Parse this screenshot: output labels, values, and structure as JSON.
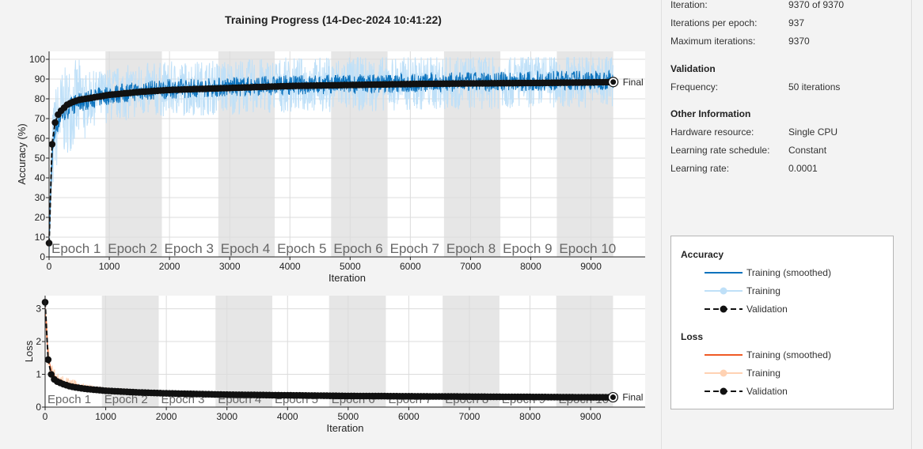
{
  "title": "Training Progress (14-Dec-2024 10:41:22)",
  "colors": {
    "acc_smoothed": "#0b72bd",
    "acc_training": "#bfe0f8",
    "loss_smoothed": "#ef5a25",
    "loss_training": "#ffd2b3",
    "validation": "#111111",
    "epoch_band": "#e6e6e6",
    "grid": "#dcdcdc"
  },
  "info": {
    "rows": [
      {
        "label": "Iteration:",
        "value": "9370 of 9370"
      },
      {
        "label": "Iterations per epoch:",
        "value": "937"
      },
      {
        "label": "Maximum iterations:",
        "value": "9370"
      }
    ],
    "validation_header": "Validation",
    "validation_rows": [
      {
        "label": "Frequency:",
        "value": "50 iterations"
      }
    ],
    "other_header": "Other Information",
    "other_rows": [
      {
        "label": "Hardware resource:",
        "value": "Single CPU"
      },
      {
        "label": "Learning rate schedule:",
        "value": "Constant"
      },
      {
        "label": "Learning rate:",
        "value": "0.0001"
      }
    ]
  },
  "legend": {
    "accuracy_header": "Accuracy",
    "accuracy_items": [
      "Training (smoothed)",
      "Training",
      "Validation"
    ],
    "loss_header": "Loss",
    "loss_items": [
      "Training (smoothed)",
      "Training",
      "Validation"
    ]
  },
  "chart_data": [
    {
      "type": "line",
      "ylabel": "Accuracy (%)",
      "xlabel": "Iteration",
      "xlim": [
        0,
        9900
      ],
      "ylim": [
        0,
        104
      ],
      "x_ticks": [
        0,
        1000,
        2000,
        3000,
        4000,
        5000,
        6000,
        7000,
        8000,
        9000
      ],
      "y_ticks": [
        0,
        10,
        20,
        30,
        40,
        50,
        60,
        70,
        80,
        90,
        100
      ],
      "epochs": [
        "Epoch 1",
        "Epoch 2",
        "Epoch 3",
        "Epoch 4",
        "Epoch 5",
        "Epoch 6",
        "Epoch 7",
        "Epoch 8",
        "Epoch 9",
        "Epoch 10"
      ],
      "iterations_per_epoch": 937,
      "final_label": "Final",
      "validation": {
        "x": [
          0,
          50,
          100,
          150,
          200,
          300,
          400,
          500,
          700,
          1000,
          1500,
          2000,
          2500,
          3000,
          3500,
          4000,
          5000,
          6000,
          7000,
          8000,
          9000,
          9370
        ],
        "y": [
          7,
          57,
          68,
          72,
          74,
          77,
          78.5,
          79.5,
          80.5,
          82,
          83.5,
          84.5,
          85,
          85.5,
          86,
          86.5,
          87,
          87.5,
          87.8,
          88,
          88.3,
          88.5
        ]
      },
      "training_smoothed": {
        "x": [
          0,
          50,
          100,
          200,
          400,
          700,
          1000,
          1500,
          2000,
          3000,
          4000,
          5000,
          6000,
          7000,
          8000,
          9370
        ],
        "y": [
          8,
          50,
          64,
          72,
          77,
          80,
          82,
          84,
          85,
          86,
          87,
          87.5,
          88,
          88.5,
          89,
          89.5
        ]
      }
    },
    {
      "type": "line",
      "ylabel": "Loss",
      "xlabel": "Iteration",
      "xlim": [
        0,
        9900
      ],
      "ylim": [
        0,
        3.4
      ],
      "x_ticks": [
        0,
        1000,
        2000,
        3000,
        4000,
        5000,
        6000,
        7000,
        8000,
        9000
      ],
      "y_ticks": [
        0,
        1,
        2,
        3
      ],
      "epochs": [
        "Epoch 1",
        "Epoch 2",
        "Epoch 3",
        "Epoch 4",
        "Epoch 5",
        "Epoch 6",
        "Epoch 7",
        "Epoch 8",
        "Epoch 9",
        "Epoch 10"
      ],
      "final_label": "Final",
      "validation": {
        "x": [
          0,
          50,
          100,
          150,
          200,
          300,
          400,
          500,
          700,
          1000,
          1500,
          2000,
          3000,
          4000,
          5000,
          6000,
          7000,
          8000,
          9000,
          9370
        ],
        "y": [
          3.2,
          1.45,
          1.0,
          0.85,
          0.78,
          0.7,
          0.64,
          0.6,
          0.55,
          0.5,
          0.45,
          0.42,
          0.38,
          0.36,
          0.34,
          0.33,
          0.32,
          0.31,
          0.3,
          0.3
        ]
      },
      "training_smoothed": {
        "x": [
          0,
          50,
          100,
          200,
          400,
          700,
          1000,
          1500,
          2000,
          3000,
          4000,
          5000,
          6000,
          7000,
          8000,
          9370
        ],
        "y": [
          3.0,
          1.6,
          1.1,
          0.85,
          0.7,
          0.6,
          0.52,
          0.46,
          0.42,
          0.38,
          0.36,
          0.34,
          0.33,
          0.32,
          0.31,
          0.3
        ]
      }
    }
  ]
}
